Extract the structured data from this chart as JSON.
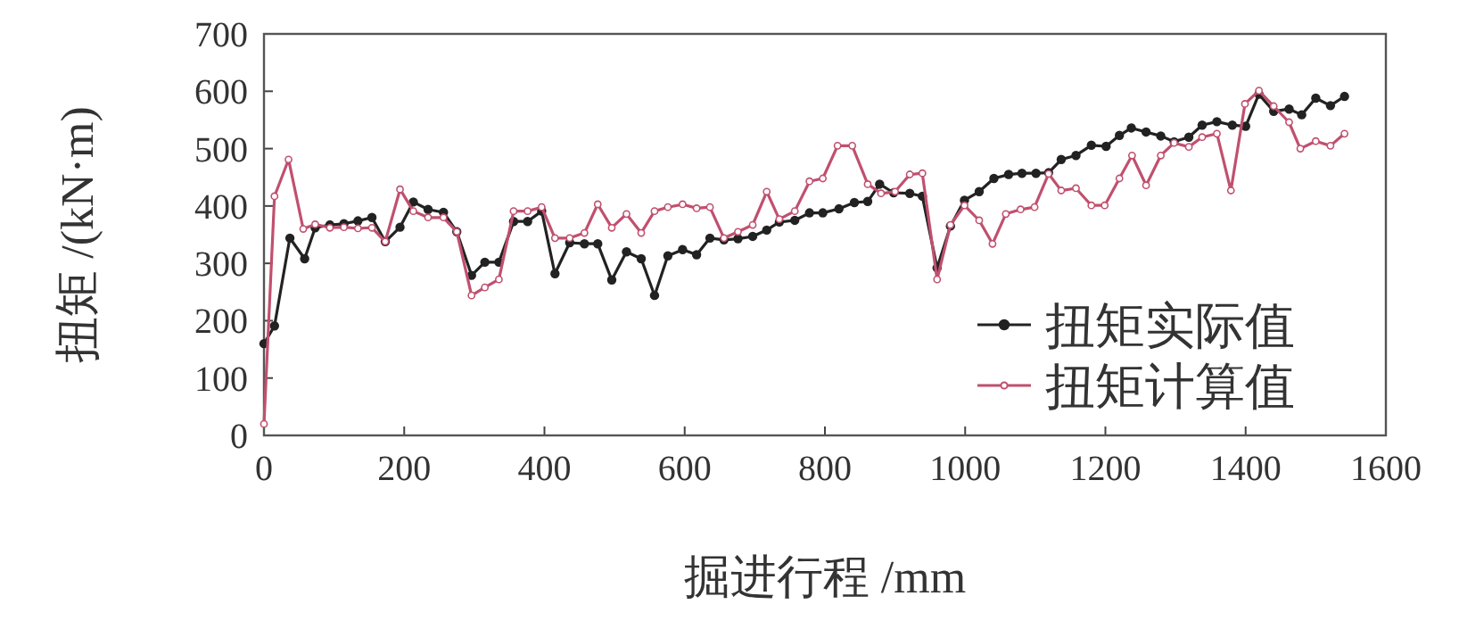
{
  "chart_data": {
    "type": "line",
    "xlabel": "掘进行程 /mm",
    "ylabel": "扭矩 /(kN·m)",
    "xlim": [
      0,
      1600
    ],
    "ylim": [
      0,
      700
    ],
    "xticks": [
      0,
      200,
      400,
      600,
      800,
      1000,
      1200,
      1400,
      1600
    ],
    "yticks": [
      0,
      100,
      200,
      300,
      400,
      500,
      600,
      700
    ],
    "legend": "bottom right",
    "marker": "circle",
    "grid": false,
    "series": [
      {
        "name": "扭矩实际值",
        "color": "#222222",
        "x": [
          0,
          15,
          37,
          58,
          73,
          94,
          114,
          134,
          154,
          173,
          194,
          213,
          234,
          256,
          275,
          296,
          315,
          335,
          356,
          376,
          396,
          415,
          436,
          457,
          476,
          496,
          517,
          538,
          557,
          576,
          597,
          617,
          636,
          656,
          676,
          697,
          717,
          735,
          757,
          778,
          797,
          820,
          842,
          861,
          878,
          898,
          921,
          939,
          960,
          979,
          999,
          1020,
          1041,
          1062,
          1081,
          1101,
          1119,
          1137,
          1158,
          1180,
          1201,
          1220,
          1237,
          1258,
          1279,
          1298,
          1319,
          1338,
          1359,
          1381,
          1400,
          1419,
          1440,
          1462,
          1480,
          1500,
          1521,
          1541
        ],
        "values": [
          160,
          191,
          344,
          308,
          362,
          367,
          369,
          374,
          380,
          338,
          363,
          407,
          394,
          389,
          355,
          279,
          302,
          302,
          373,
          373,
          391,
          282,
          336,
          334,
          334,
          271,
          320,
          308,
          244,
          313,
          324,
          315,
          344,
          341,
          343,
          347,
          358,
          372,
          375,
          388,
          388,
          395,
          406,
          408,
          438,
          423,
          422,
          417,
          292,
          365,
          410,
          425,
          448,
          455,
          457,
          457,
          458,
          481,
          488,
          506,
          504,
          523,
          536,
          529,
          522,
          512,
          520,
          541,
          547,
          541,
          539,
          595,
          565,
          569,
          559,
          588,
          575,
          591
        ]
      },
      {
        "name": "扭矩计算值",
        "color": "#c0506e",
        "x": [
          0,
          15,
          35,
          56,
          73,
          94,
          114,
          134,
          154,
          173,
          194,
          213,
          234,
          256,
          275,
          296,
          315,
          335,
          356,
          376,
          396,
          415,
          436,
          457,
          476,
          496,
          517,
          538,
          557,
          576,
          597,
          617,
          636,
          656,
          676,
          697,
          717,
          735,
          757,
          778,
          797,
          818,
          839,
          861,
          880,
          900,
          921,
          939,
          960,
          979,
          999,
          1020,
          1039,
          1058,
          1079,
          1099,
          1119,
          1137,
          1158,
          1180,
          1199,
          1220,
          1238,
          1258,
          1279,
          1298,
          1319,
          1338,
          1359,
          1379,
          1399,
          1419,
          1440,
          1462,
          1478,
          1500,
          1521,
          1541
        ],
        "values": [
          20,
          417,
          481,
          360,
          368,
          362,
          363,
          361,
          362,
          338,
          429,
          391,
          380,
          380,
          355,
          244,
          258,
          272,
          391,
          391,
          398,
          344,
          344,
          353,
          403,
          362,
          386,
          353,
          391,
          398,
          403,
          396,
          398,
          344,
          355,
          367,
          425,
          377,
          391,
          443,
          448,
          505,
          505,
          438,
          422,
          425,
          455,
          457,
          272,
          367,
          401,
          375,
          334,
          386,
          394,
          398,
          456,
          427,
          431,
          401,
          401,
          448,
          488,
          436,
          488,
          510,
          503,
          520,
          526,
          427,
          578,
          601,
          574,
          546,
          500,
          513,
          505,
          526
        ]
      }
    ]
  }
}
